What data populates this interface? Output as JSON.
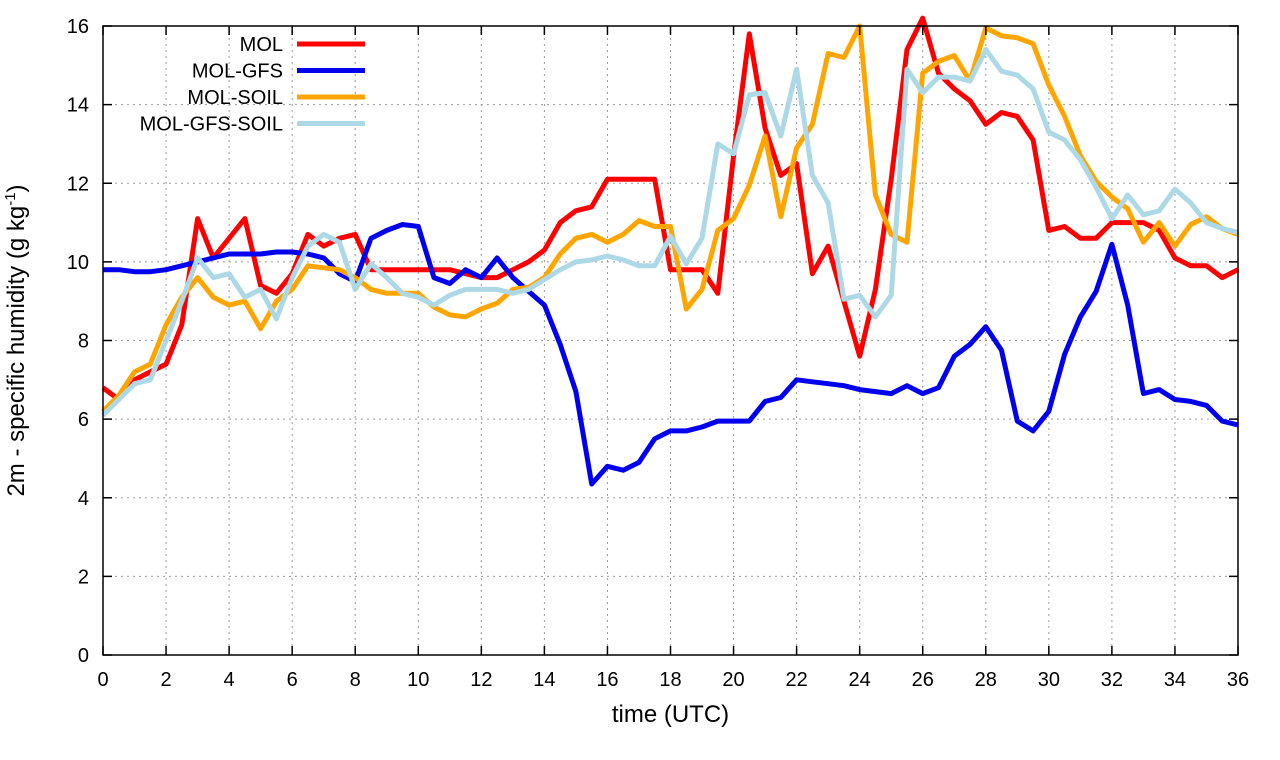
{
  "chart_data": {
    "type": "line",
    "title": "",
    "xlabel": "time (UTC)",
    "ylabel": {
      "main": "2m - specific humidity (g kg",
      "superscript": "-1",
      "close": ")"
    },
    "xlim": [
      0,
      36
    ],
    "ylim": [
      0,
      16
    ],
    "xticks": [
      "0",
      "2",
      "4",
      "6",
      "8",
      "10",
      "12",
      "14",
      "16",
      "18",
      "20",
      "22",
      "24",
      "26",
      "28",
      "30",
      "32",
      "34",
      "36"
    ],
    "yticks": [
      "0",
      "2",
      "4",
      "6",
      "8",
      "10",
      "12",
      "14",
      "16"
    ],
    "grid": true,
    "legend_position": "top-left",
    "series": [
      {
        "name": "MOL",
        "color": "#ff0000",
        "x": [
          0,
          0.5,
          1,
          1.5,
          2,
          2.5,
          3,
          3.5,
          4,
          4.5,
          5,
          5.5,
          6,
          6.5,
          7,
          7.5,
          8,
          8.5,
          9,
          9.5,
          10,
          10.5,
          11,
          11.5,
          12,
          12.5,
          13,
          13.5,
          14,
          14.5,
          15,
          15.5,
          16,
          16.5,
          17,
          17.5,
          18,
          18.5,
          19,
          19.5,
          20,
          20.5,
          21,
          21.5,
          22,
          22.5,
          23,
          23.5,
          24,
          24.5,
          25,
          25.5,
          26,
          26.5,
          27,
          27.5,
          28,
          28.5,
          29,
          29.5,
          30,
          30.5,
          31,
          31.5,
          32,
          32.5,
          33,
          33.5,
          34,
          34.5,
          35,
          35.5,
          36
        ],
        "y": [
          6.8,
          6.5,
          7.0,
          7.2,
          7.4,
          8.4,
          11.1,
          10.1,
          10.6,
          11.1,
          9.4,
          9.2,
          9.7,
          10.7,
          10.4,
          10.6,
          10.7,
          9.8,
          9.8,
          9.8,
          9.8,
          9.8,
          9.8,
          9.7,
          9.6,
          9.6,
          9.8,
          10.0,
          10.3,
          11.0,
          11.3,
          11.4,
          12.1,
          12.1,
          12.1,
          12.1,
          9.8,
          9.8,
          9.8,
          9.2,
          12.7,
          15.8,
          13.4,
          12.2,
          12.5,
          9.7,
          10.4,
          9.0,
          7.6,
          9.3,
          12.1,
          15.4,
          16.2,
          14.8,
          14.4,
          14.1,
          13.5,
          13.8,
          13.7,
          13.1,
          10.8,
          10.9,
          10.6,
          10.6,
          11.0,
          11.0,
          11.0,
          10.8,
          10.1,
          9.9,
          9.9,
          9.6,
          9.8
        ]
      },
      {
        "name": "MOL-GFS",
        "color": "#0000ee",
        "x": [
          0,
          0.5,
          1,
          1.5,
          2,
          2.5,
          3,
          3.5,
          4,
          4.5,
          5,
          5.5,
          6,
          6.5,
          7,
          7.5,
          8,
          8.5,
          9,
          9.5,
          10,
          10.5,
          11,
          11.5,
          12,
          12.5,
          13,
          13.5,
          14,
          14.5,
          15,
          15.5,
          16,
          16.5,
          17,
          17.5,
          18,
          18.5,
          19,
          19.5,
          20,
          20.5,
          21,
          21.5,
          22,
          22.5,
          23,
          23.5,
          24,
          24.5,
          25,
          25.5,
          26,
          26.5,
          27,
          27.5,
          28,
          28.5,
          29,
          29.5,
          30,
          30.5,
          31,
          31.5,
          32,
          32.5,
          33,
          33.5,
          34,
          34.5,
          35,
          35.5,
          36
        ],
        "y": [
          9.8,
          9.8,
          9.75,
          9.75,
          9.8,
          9.9,
          10.0,
          10.1,
          10.2,
          10.2,
          10.2,
          10.25,
          10.25,
          10.2,
          10.1,
          9.7,
          9.5,
          10.6,
          10.8,
          10.95,
          10.9,
          9.6,
          9.45,
          9.8,
          9.6,
          10.1,
          9.6,
          9.25,
          8.9,
          7.9,
          6.7,
          4.35,
          4.8,
          4.7,
          4.9,
          5.5,
          5.7,
          5.7,
          5.8,
          5.95,
          5.95,
          5.95,
          6.45,
          6.55,
          7.0,
          6.95,
          6.9,
          6.85,
          6.75,
          6.7,
          6.65,
          6.85,
          6.65,
          6.8,
          7.6,
          7.9,
          8.35,
          7.75,
          5.95,
          5.7,
          6.2,
          7.65,
          8.6,
          9.25,
          10.45,
          8.9,
          6.65,
          6.75,
          6.5,
          6.45,
          6.35,
          5.95,
          5.85
        ]
      },
      {
        "name": "MOL-SOIL",
        "color": "#ffa500",
        "x": [
          0,
          0.5,
          1,
          1.5,
          2,
          2.5,
          3,
          3.5,
          4,
          4.5,
          5,
          5.5,
          6,
          6.5,
          7,
          7.5,
          8,
          8.5,
          9,
          9.5,
          10,
          10.5,
          11,
          11.5,
          12,
          12.5,
          13,
          13.5,
          14,
          14.5,
          15,
          15.5,
          16,
          16.5,
          17,
          17.5,
          18,
          18.5,
          19,
          19.5,
          20,
          20.5,
          21,
          21.5,
          22,
          22.5,
          23,
          23.5,
          24,
          24.5,
          25,
          25.5,
          26,
          26.5,
          27,
          27.5,
          28,
          28.5,
          29,
          29.5,
          30,
          30.5,
          31,
          31.5,
          32,
          32.5,
          33,
          33.5,
          34,
          34.5,
          35,
          35.5,
          36
        ],
        "y": [
          6.2,
          6.6,
          7.2,
          7.4,
          8.4,
          9.1,
          9.6,
          9.1,
          8.9,
          9.0,
          8.3,
          9.0,
          9.3,
          9.9,
          9.85,
          9.8,
          9.6,
          9.3,
          9.2,
          9.2,
          9.2,
          8.85,
          8.65,
          8.6,
          8.8,
          8.95,
          9.3,
          9.35,
          9.6,
          10.2,
          10.6,
          10.7,
          10.5,
          10.7,
          11.05,
          10.9,
          10.9,
          8.8,
          9.3,
          10.8,
          11.1,
          11.95,
          13.2,
          11.15,
          12.9,
          13.5,
          15.3,
          15.2,
          16.0,
          11.7,
          10.7,
          10.5,
          14.8,
          15.1,
          15.25,
          14.6,
          15.95,
          15.75,
          15.7,
          15.55,
          14.5,
          13.7,
          12.7,
          12.05,
          11.65,
          11.35,
          10.5,
          11.0,
          10.4,
          10.95,
          11.15,
          10.85,
          10.7
        ]
      },
      {
        "name": "MOL-GFS-SOIL",
        "color": "#add8e6",
        "x": [
          0,
          0.5,
          1,
          1.5,
          2,
          2.5,
          3,
          3.5,
          4,
          4.5,
          5,
          5.5,
          6,
          6.5,
          7,
          7.5,
          8,
          8.5,
          9,
          9.5,
          10,
          10.5,
          11,
          11.5,
          12,
          12.5,
          13,
          13.5,
          14,
          14.5,
          15,
          15.5,
          16,
          16.5,
          17,
          17.5,
          18,
          18.5,
          19,
          19.5,
          20,
          20.5,
          21,
          21.5,
          22,
          22.5,
          23,
          23.5,
          24,
          24.5,
          25,
          25.5,
          26,
          26.5,
          27,
          27.5,
          28,
          28.5,
          29,
          29.5,
          30,
          30.5,
          31,
          31.5,
          32,
          32.5,
          33,
          33.5,
          34,
          34.5,
          35,
          35.5,
          36
        ],
        "y": [
          6.1,
          6.5,
          6.9,
          7.0,
          8.0,
          9.0,
          10.1,
          9.6,
          9.7,
          9.1,
          9.3,
          8.55,
          9.6,
          10.4,
          10.7,
          10.5,
          9.3,
          9.95,
          9.6,
          9.2,
          9.1,
          8.9,
          9.15,
          9.3,
          9.3,
          9.3,
          9.2,
          9.3,
          9.55,
          9.8,
          10.0,
          10.05,
          10.15,
          10.05,
          9.9,
          9.9,
          10.65,
          9.95,
          10.6,
          13.0,
          12.75,
          14.25,
          14.3,
          13.2,
          14.9,
          12.2,
          11.5,
          9.05,
          9.15,
          8.6,
          9.15,
          14.9,
          14.3,
          14.7,
          14.7,
          14.6,
          15.4,
          14.85,
          14.75,
          14.4,
          13.3,
          13.1,
          12.6,
          11.9,
          11.1,
          11.7,
          11.2,
          11.3,
          11.85,
          11.5,
          11.0,
          10.85,
          10.75
        ]
      }
    ]
  }
}
